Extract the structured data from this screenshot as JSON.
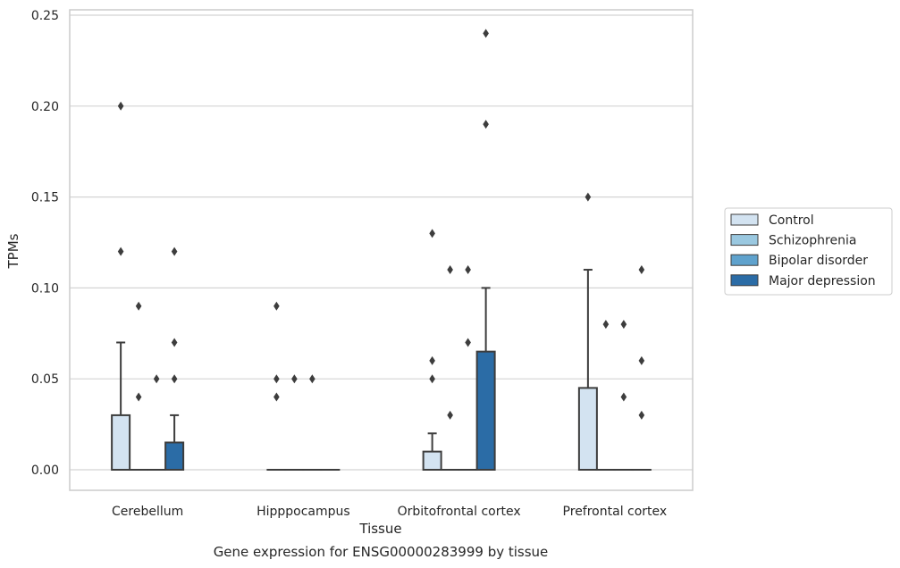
{
  "chart_data": {
    "type": "box",
    "title": "",
    "caption": "Gene expression for ENSG00000283999 by tissue",
    "xlabel": "Tissue",
    "ylabel": "TPMs",
    "ylim": [
      -0.012,
      0.252
    ],
    "yticks": [
      0.0,
      0.05,
      0.1,
      0.15,
      0.2,
      0.25
    ],
    "ytick_labels": [
      "0.00",
      "0.05",
      "0.10",
      "0.15",
      "0.20",
      "0.25"
    ],
    "grid": "horizontal",
    "legend_position": "right",
    "categories": [
      "Cerebellum",
      "Hipppocampus",
      "Orbitofrontal cortex",
      "Prefrontal cortex"
    ],
    "series": [
      {
        "name": "Control",
        "color": "#d3e3f1",
        "boxes": [
          {
            "q1": 0.0,
            "median": 0.0,
            "q3": 0.03,
            "whisker_low": 0.0,
            "whisker_high": 0.07,
            "outliers": [
              0.12,
              0.2
            ]
          },
          {
            "q1": 0.0,
            "median": 0.0,
            "q3": 0.0,
            "whisker_low": 0.0,
            "whisker_high": 0.0,
            "outliers": [
              0.04,
              0.05,
              0.09
            ]
          },
          {
            "q1": 0.0,
            "median": 0.0,
            "q3": 0.01,
            "whisker_low": 0.0,
            "whisker_high": 0.02,
            "outliers": [
              0.05,
              0.06,
              0.13
            ]
          },
          {
            "q1": 0.0,
            "median": 0.0,
            "q3": 0.045,
            "whisker_low": 0.0,
            "whisker_high": 0.11,
            "outliers": [
              0.15
            ]
          }
        ]
      },
      {
        "name": "Schizophrenia",
        "color": "#9ac8e0",
        "boxes": [
          {
            "q1": 0.0,
            "median": 0.0,
            "q3": 0.0,
            "whisker_low": 0.0,
            "whisker_high": 0.0,
            "outliers": [
              0.04,
              0.09
            ]
          },
          {
            "q1": 0.0,
            "median": 0.0,
            "q3": 0.0,
            "whisker_low": 0.0,
            "whisker_high": 0.0,
            "outliers": [
              0.05
            ]
          },
          {
            "q1": 0.0,
            "median": 0.0,
            "q3": 0.0,
            "whisker_low": 0.0,
            "whisker_high": 0.0,
            "outliers": [
              0.03,
              0.11
            ]
          },
          {
            "q1": 0.0,
            "median": 0.0,
            "q3": 0.0,
            "whisker_low": 0.0,
            "whisker_high": 0.0,
            "outliers": [
              0.08
            ]
          }
        ]
      },
      {
        "name": "Bipolar disorder",
        "color": "#5fa2cd",
        "boxes": [
          {
            "q1": 0.0,
            "median": 0.0,
            "q3": 0.0,
            "whisker_low": 0.0,
            "whisker_high": 0.0,
            "outliers": [
              0.05
            ]
          },
          {
            "q1": 0.0,
            "median": 0.0,
            "q3": 0.0,
            "whisker_low": 0.0,
            "whisker_high": 0.0,
            "outliers": [
              0.05
            ]
          },
          {
            "q1": 0.0,
            "median": 0.0,
            "q3": 0.0,
            "whisker_low": 0.0,
            "whisker_high": 0.0,
            "outliers": [
              0.07,
              0.11
            ]
          },
          {
            "q1": 0.0,
            "median": 0.0,
            "q3": 0.0,
            "whisker_low": 0.0,
            "whisker_high": 0.0,
            "outliers": [
              0.04,
              0.08
            ]
          }
        ]
      },
      {
        "name": "Major depression",
        "color": "#2b6ca6",
        "boxes": [
          {
            "q1": 0.0,
            "median": 0.0,
            "q3": 0.015,
            "whisker_low": 0.0,
            "whisker_high": 0.03,
            "outliers": [
              0.05,
              0.07,
              0.12
            ]
          },
          {
            "q1": 0.0,
            "median": 0.0,
            "q3": 0.0,
            "whisker_low": 0.0,
            "whisker_high": 0.0,
            "outliers": []
          },
          {
            "q1": 0.0,
            "median": 0.0,
            "q3": 0.065,
            "whisker_low": 0.0,
            "whisker_high": 0.1,
            "outliers": [
              0.19,
              0.24
            ]
          },
          {
            "q1": 0.0,
            "median": 0.0,
            "q3": 0.0,
            "whisker_low": 0.0,
            "whisker_high": 0.0,
            "outliers": [
              0.03,
              0.06,
              0.11
            ]
          }
        ]
      }
    ]
  }
}
